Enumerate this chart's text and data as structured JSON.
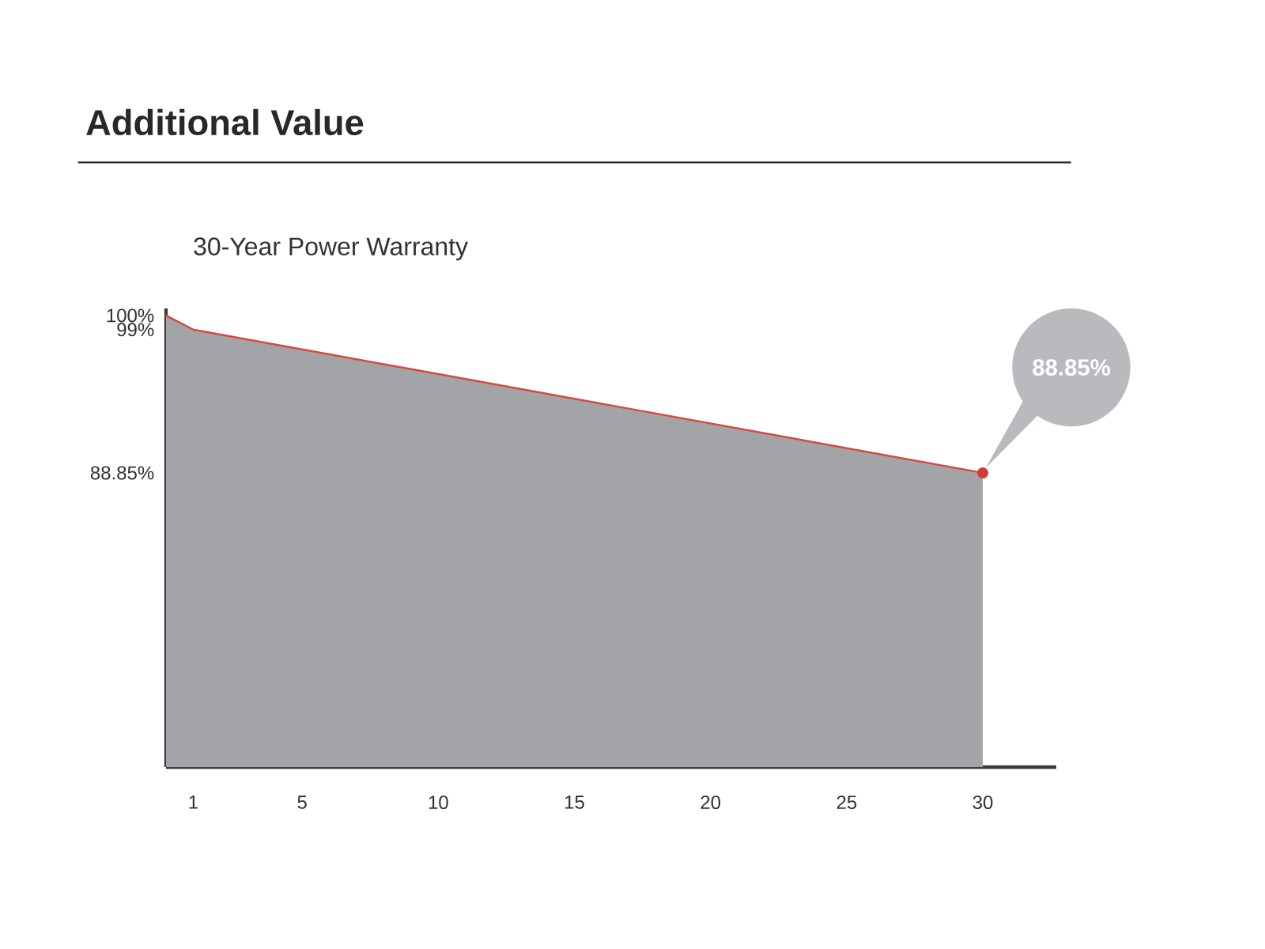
{
  "chart_data": {
    "type": "area",
    "title": "Additional Value",
    "subtitle": "30-Year Power Warranty",
    "x": [
      0,
      1,
      30
    ],
    "series": [
      {
        "color": "#a3a4a7",
        "values": [
          100,
          99,
          88.85
        ]
      }
    ],
    "xlim": [
      0,
      32.7
    ],
    "ylim": [
      68,
      100.5
    ],
    "xticks": [
      1,
      5,
      10,
      15,
      20,
      25,
      30
    ],
    "yticks": [
      {
        "value": 88.85,
        "label": "88.85%"
      },
      {
        "value": 99,
        "label": "99%"
      },
      {
        "value": 100,
        "label": "100%"
      }
    ],
    "annotations": [
      "88.85%"
    ]
  }
}
